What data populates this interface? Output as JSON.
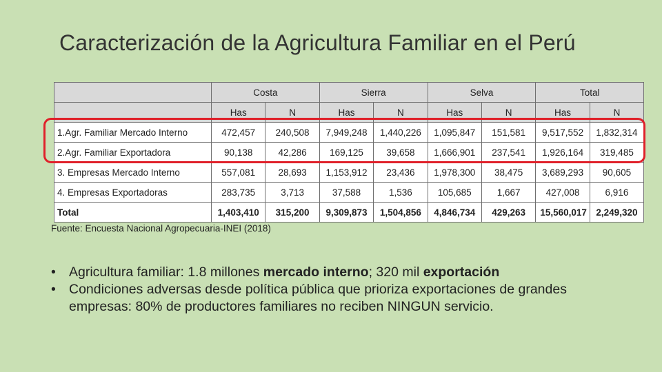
{
  "title": "Caracterización de la Agricultura Familiar en el Perú",
  "table": {
    "regions": [
      "Costa",
      "Sierra",
      "Selva",
      "Total"
    ],
    "subheaders": [
      "Has",
      "N",
      "Has",
      "N",
      "Has",
      "N",
      "Has",
      "N"
    ],
    "rows": [
      {
        "label": "1.Agr. Familiar Mercado Interno",
        "values": [
          "472,457",
          "240,508",
          "7,949,248",
          "1,440,226",
          "1,095,847",
          "151,581",
          "9,517,552",
          "1,832,314"
        ]
      },
      {
        "label": "2.Agr. Familiar Exportadora",
        "values": [
          "90,138",
          "42,286",
          "169,125",
          "39,658",
          "1,666,901",
          "237,541",
          "1,926,164",
          "319,485"
        ]
      },
      {
        "label": "3. Empresas Mercado Interno",
        "values": [
          "557,081",
          "28,693",
          "1,153,912",
          "23,436",
          "1,978,300",
          "38,475",
          "3,689,293",
          "90,605"
        ]
      },
      {
        "label": "4. Empresas Exportadoras",
        "values": [
          "283,735",
          "3,713",
          "37,588",
          "1,536",
          "105,685",
          "1,667",
          "427,008",
          "6,916"
        ]
      },
      {
        "label": "Total",
        "values": [
          "1,403,410",
          "315,200",
          "9,309,873",
          "1,504,856",
          "4,846,734",
          "429,263",
          "15,560,017",
          "2,249,320"
        ]
      }
    ]
  },
  "source": "Fuente: Encuesta Nacional Agropecuaria-INEI (2018)",
  "bullets": {
    "b1_pre": "Agricultura familiar: 1.8 millones ",
    "b1_bold1": "mercado interno",
    "b1_mid": "; 320 mil ",
    "b1_bold2": "exportación",
    "b2": "Condiciones adversas desde política pública que prioriza exportaciones de grandes empresas: 80% de productores familiares no reciben NINGUN servicio."
  },
  "colors": {
    "background": "#c9e0b4",
    "highlight": "#e0202a",
    "header": "#d9d9d9"
  }
}
